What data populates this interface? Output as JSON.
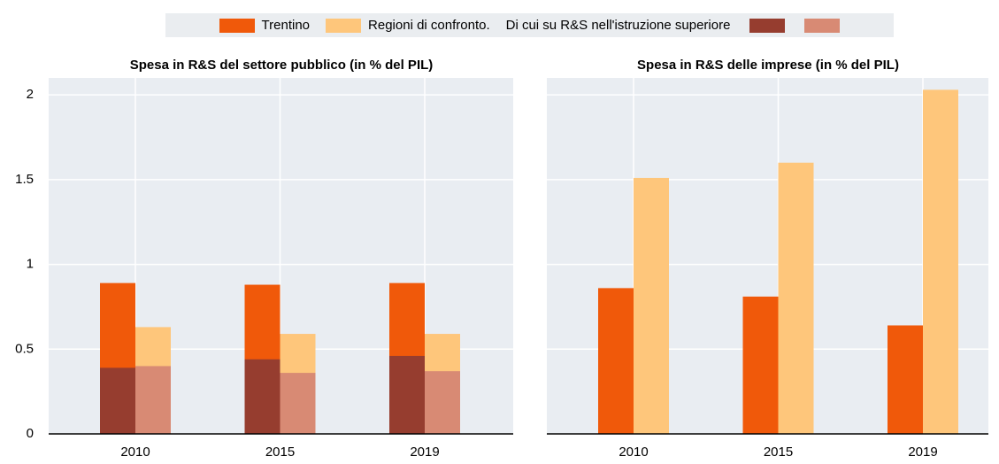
{
  "legend": {
    "note": "Di cui su R&S nell'istruzione superiore"
  },
  "chart_data": [
    {
      "type": "bar",
      "title": "Spesa in R&S del settore pubblico (in % del PIL)",
      "categories": [
        "2010",
        "2015",
        "2019"
      ],
      "ylim": [
        0,
        2.1
      ],
      "yticks": [
        0,
        0.5,
        1,
        1.5,
        2
      ],
      "grid": true,
      "ytick_labels": true,
      "series": [
        {
          "name": "Trentino",
          "color": "#f0590a",
          "values": [
            0.89,
            0.88,
            0.89
          ]
        },
        {
          "name": "Regioni di confronto.",
          "color": "#fec67b",
          "values": [
            0.63,
            0.59,
            0.59
          ]
        },
        {
          "color": "#963d2f",
          "values": [
            0.39,
            0.44,
            0.46
          ],
          "overlay": 0
        },
        {
          "color": "#d88a74",
          "values": [
            0.4,
            0.36,
            0.37
          ],
          "overlay": 1
        }
      ]
    },
    {
      "type": "bar",
      "title": "Spesa in R&S delle imprese (in % del PIL)",
      "categories": [
        "2010",
        "2015",
        "2019"
      ],
      "ylim": [
        0,
        2.1
      ],
      "yticks": [
        0,
        0.5,
        1,
        1.5,
        2
      ],
      "grid": true,
      "ytick_labels": false,
      "series": [
        {
          "color": "#f0590a",
          "values": [
            0.86,
            0.81,
            0.64
          ]
        },
        {
          "color": "#fec67b",
          "values": [
            1.51,
            1.6,
            2.03
          ]
        }
      ]
    }
  ]
}
